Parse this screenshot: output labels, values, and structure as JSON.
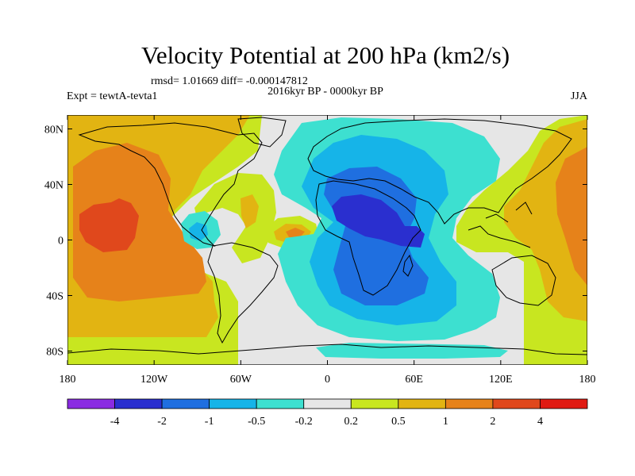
{
  "title": "Velocity Potential at 200 hPa (km2/s)",
  "stats_line": "rmsd= 1.01669 diff= -0.000147812",
  "period_line": "2016kyr BP - 0000kyr BP",
  "left_label": "Expt = tewtA-tevta1",
  "right_label": "JJA",
  "map": {
    "projection": "cylindrical-equidistant",
    "lon_range": [
      -180,
      180
    ],
    "lat_range": [
      -90,
      90
    ],
    "x_ticks": [
      {
        "lon": -180,
        "label": "180"
      },
      {
        "lon": -120,
        "label": "120W"
      },
      {
        "lon": -60,
        "label": "60W"
      },
      {
        "lon": 0,
        "label": "0"
      },
      {
        "lon": 60,
        "label": "60E"
      },
      {
        "lon": 120,
        "label": "120E"
      },
      {
        "lon": 180,
        "label": "180"
      }
    ],
    "y_ticks": [
      {
        "lat": 80,
        "label": "80N"
      },
      {
        "lat": 40,
        "label": "40N"
      },
      {
        "lat": 0,
        "label": "0"
      },
      {
        "lat": -40,
        "label": "40S"
      },
      {
        "lat": -80,
        "label": "80S"
      }
    ]
  },
  "colorbar": {
    "colors": [
      "#8a2be2",
      "#2a2fcf",
      "#1f6fe0",
      "#16b4e8",
      "#3de0d0",
      "#e6e6e6",
      "#c8e620",
      "#e2b412",
      "#e6821a",
      "#e0481c",
      "#e01a12"
    ],
    "levels": [
      "-4",
      "-2",
      "-1",
      "-0.5",
      "-0.2",
      "0.2",
      "0.5",
      "1",
      "2",
      "4"
    ]
  }
}
